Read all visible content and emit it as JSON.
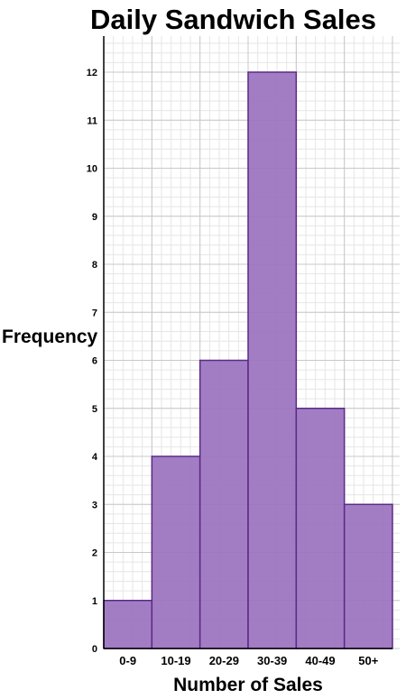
{
  "chart_data": {
    "type": "bar",
    "title": "Daily Sandwich Sales",
    "xlabel": "Number of Sales",
    "ylabel": "Frequency",
    "categories": [
      "0-9",
      "10-19",
      "20-29",
      "30-39",
      "40-49",
      "50+"
    ],
    "values": [
      1,
      4,
      6,
      12,
      5,
      3
    ],
    "ylim": [
      0,
      12
    ],
    "yticks": [
      0,
      1,
      2,
      3,
      4,
      5,
      6,
      7,
      8,
      9,
      10,
      11,
      12
    ],
    "grid": true,
    "colors": {
      "bar_fill": "#9b72bf",
      "bar_stroke": "#5a2a86",
      "grid_major": "#c8c8c8",
      "grid_minor": "#e6e6e6",
      "axis": "#000000"
    }
  }
}
